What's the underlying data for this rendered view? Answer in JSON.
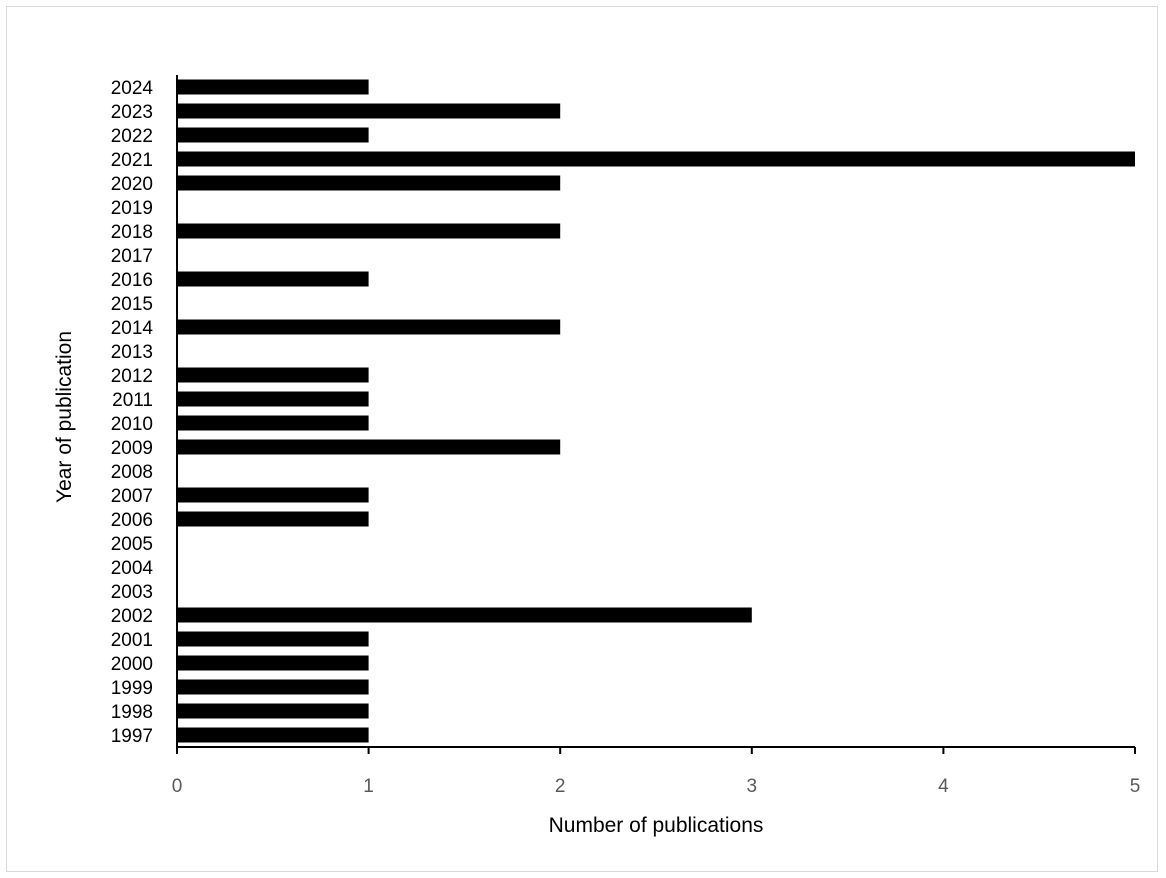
{
  "chart_data": {
    "type": "bar",
    "orientation": "horizontal",
    "title": "",
    "xlabel": "Number of publications",
    "ylabel": "Year of publication",
    "xlim": [
      0,
      5
    ],
    "x_ticks": [
      "0",
      "1",
      "2",
      "3",
      "4",
      "5"
    ],
    "grid": false,
    "legend": "none",
    "bar_color": "#000000",
    "axis_color": "#000000",
    "tick_label_color": "#595959",
    "categories": [
      "1997",
      "1998",
      "1999",
      "2000",
      "2001",
      "2002",
      "2003",
      "2004",
      "2005",
      "2006",
      "2007",
      "2008",
      "2009",
      "2010",
      "2011",
      "2012",
      "2013",
      "2014",
      "2015",
      "2016",
      "2017",
      "2018",
      "2019",
      "2020",
      "2021",
      "2022",
      "2023",
      "2024"
    ],
    "values": [
      1,
      1,
      1,
      1,
      1,
      3,
      0,
      0,
      0,
      1,
      1,
      0,
      2,
      1,
      1,
      1,
      0,
      2,
      0,
      1,
      0,
      2,
      0,
      2,
      5,
      1,
      2,
      1
    ]
  }
}
